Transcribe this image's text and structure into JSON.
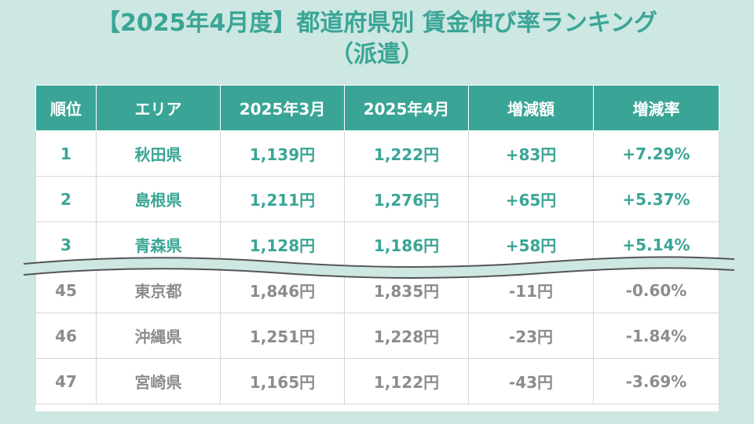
{
  "title": {
    "line1": "【2025年4月度】都道府県別 賃金伸び率ランキング",
    "line2": "（派遣）"
  },
  "table": {
    "headers": [
      "順位",
      "エリア",
      "2025年3月",
      "2025年4月",
      "増減額",
      "増減率"
    ],
    "top_rows": [
      [
        "1",
        "秋田県",
        "1,139円",
        "1,222円",
        "+83円",
        "+7.29%"
      ],
      [
        "2",
        "島根県",
        "1,211円",
        "1,276円",
        "+65円",
        "+5.37%"
      ],
      [
        "3",
        "青森県",
        "1,128円",
        "1,186円",
        "+58円",
        "+5.14%"
      ]
    ],
    "bottom_rows": [
      [
        "45",
        "東京都",
        "1,846円",
        "1,835円",
        "-11円",
        "-0.60%"
      ],
      [
        "46",
        "沖縄県",
        "1,251円",
        "1,228円",
        "-23円",
        "-1.84%"
      ],
      [
        "47",
        "宮崎県",
        "1,165円",
        "1,122円",
        "-43円",
        "-3.69%"
      ]
    ]
  },
  "colors": {
    "accent": "#3aa596",
    "background": "#cde7e2",
    "muted": "#8c8c8c"
  }
}
